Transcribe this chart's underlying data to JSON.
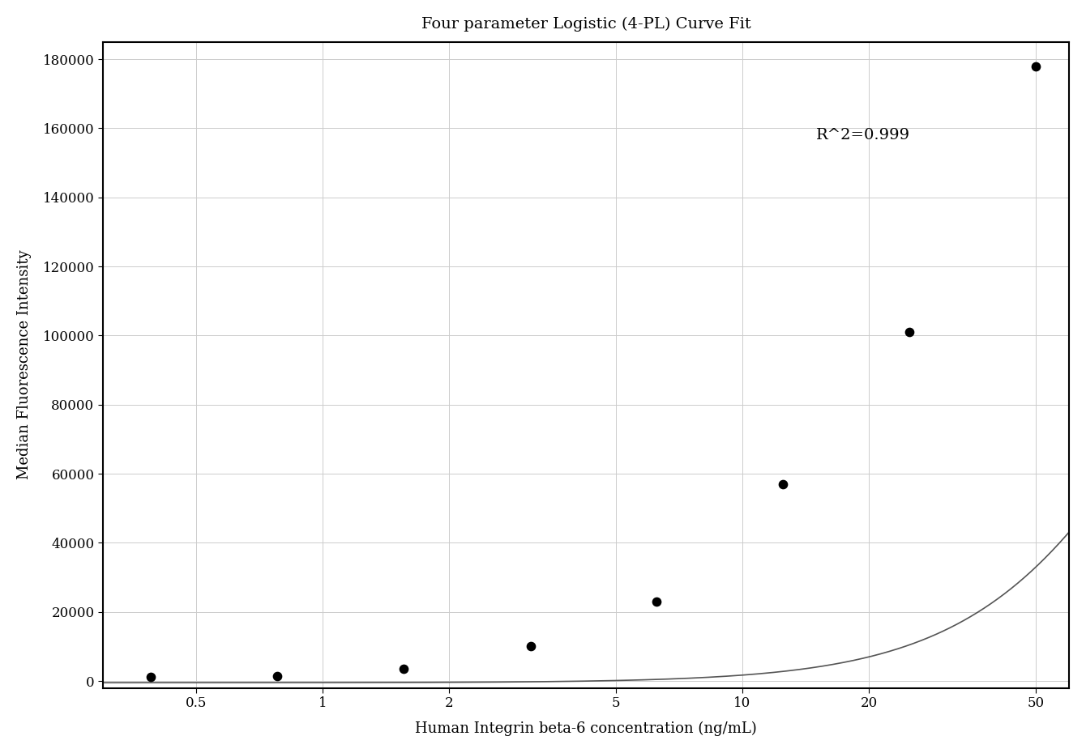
{
  "title": "Four parameter Logistic (4-PL) Curve Fit",
  "xlabel": "Human Integrin beta-6 concentration (ng/mL)",
  "ylabel": "Median Fluorescence Intensity",
  "data_x": [
    0.39,
    0.78,
    1.56,
    3.13,
    6.25,
    12.5,
    25.0,
    50.0
  ],
  "data_y": [
    1200,
    1500,
    3500,
    10000,
    23000,
    57000,
    101000,
    178000
  ],
  "xlim": [
    0.3,
    60
  ],
  "ylim": [
    -2000,
    185000
  ],
  "yticks": [
    0,
    20000,
    40000,
    60000,
    80000,
    100000,
    120000,
    140000,
    160000,
    180000
  ],
  "xticks": [
    0.5,
    1,
    2,
    5,
    10,
    20,
    50
  ],
  "xtick_labels": [
    "0.5",
    "1",
    "2",
    "5",
    "10",
    "20",
    "50"
  ],
  "r2_text": "R^2=0.999",
  "r2_x": 15,
  "r2_y": 158000,
  "line_color": "#555555",
  "dot_color": "#000000",
  "background_color": "#ffffff",
  "grid_color": "#cccccc"
}
